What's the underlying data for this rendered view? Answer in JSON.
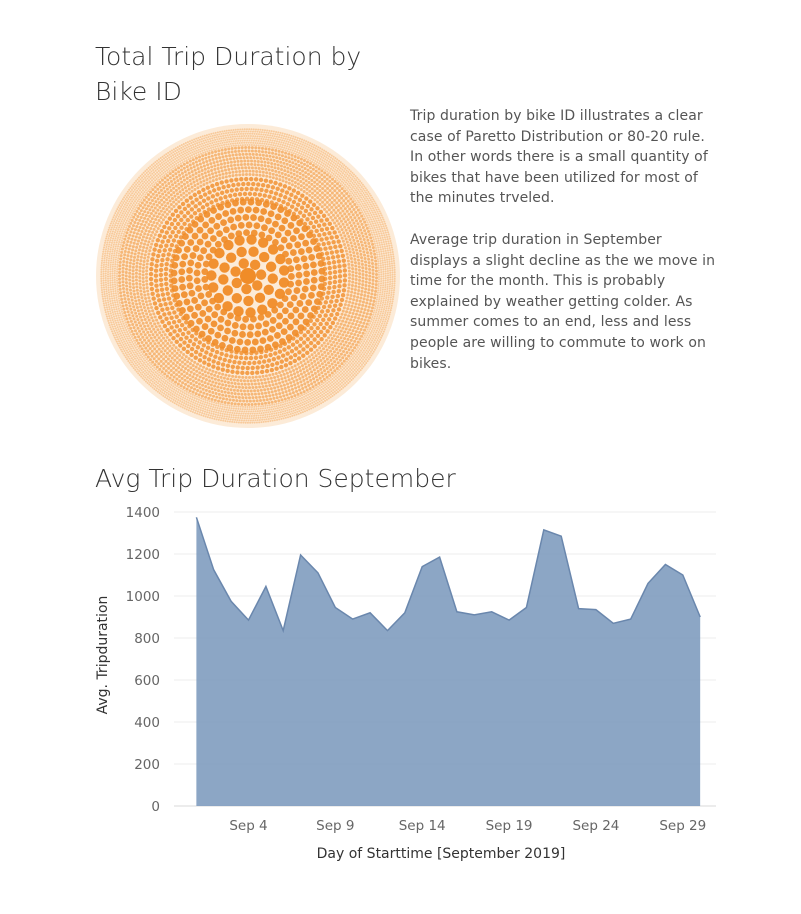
{
  "bubble_chart": {
    "title": "Total Trip Duration by Bike ID",
    "base_color": "#f08c28"
  },
  "description": {
    "paragraph1": "Trip duration by bike ID illustrates a clear case of Paretto Distribution or 80-20 rule. In other words there is a small quantity of bikes that have been utilized for most of the minutes trveled.",
    "paragraph2": "Average trip duration in September displays a slight decline as the we move in time for the month. This is probably explained by weather getting colder. As summer comes to an end, less and less people are willing to commute to work on bikes."
  },
  "chart_data": {
    "type": "area",
    "title": "Avg Trip Duration September",
    "xlabel": "Day of Starttime [September 2019]",
    "ylabel": "Avg. Tripduration",
    "ylim": [
      0,
      1400
    ],
    "yticks": [
      0,
      200,
      400,
      600,
      800,
      1000,
      1200,
      1400
    ],
    "x_tick_labels": [
      "Sep 4",
      "Sep 9",
      "Sep 14",
      "Sep 19",
      "Sep 24",
      "Sep 29"
    ],
    "x_tick_days": [
      4,
      9,
      14,
      19,
      24,
      29
    ],
    "grid": true,
    "color": "#7f9cbf",
    "line_color": "#6a87ad",
    "series": [
      {
        "x": [
          1,
          2,
          3,
          4,
          5,
          6,
          7,
          8,
          9,
          10,
          11,
          12,
          13,
          14,
          15,
          16,
          17,
          18,
          19,
          20,
          21,
          22,
          23,
          24,
          25,
          26,
          27,
          28,
          29,
          30
        ],
        "values": [
          1375,
          1125,
          975,
          885,
          1045,
          835,
          1195,
          1110,
          945,
          890,
          920,
          835,
          920,
          1140,
          1185,
          925,
          910,
          925,
          885,
          945,
          1315,
          1285,
          940,
          935,
          870,
          890,
          1060,
          1150,
          1100,
          900
        ]
      }
    ]
  }
}
